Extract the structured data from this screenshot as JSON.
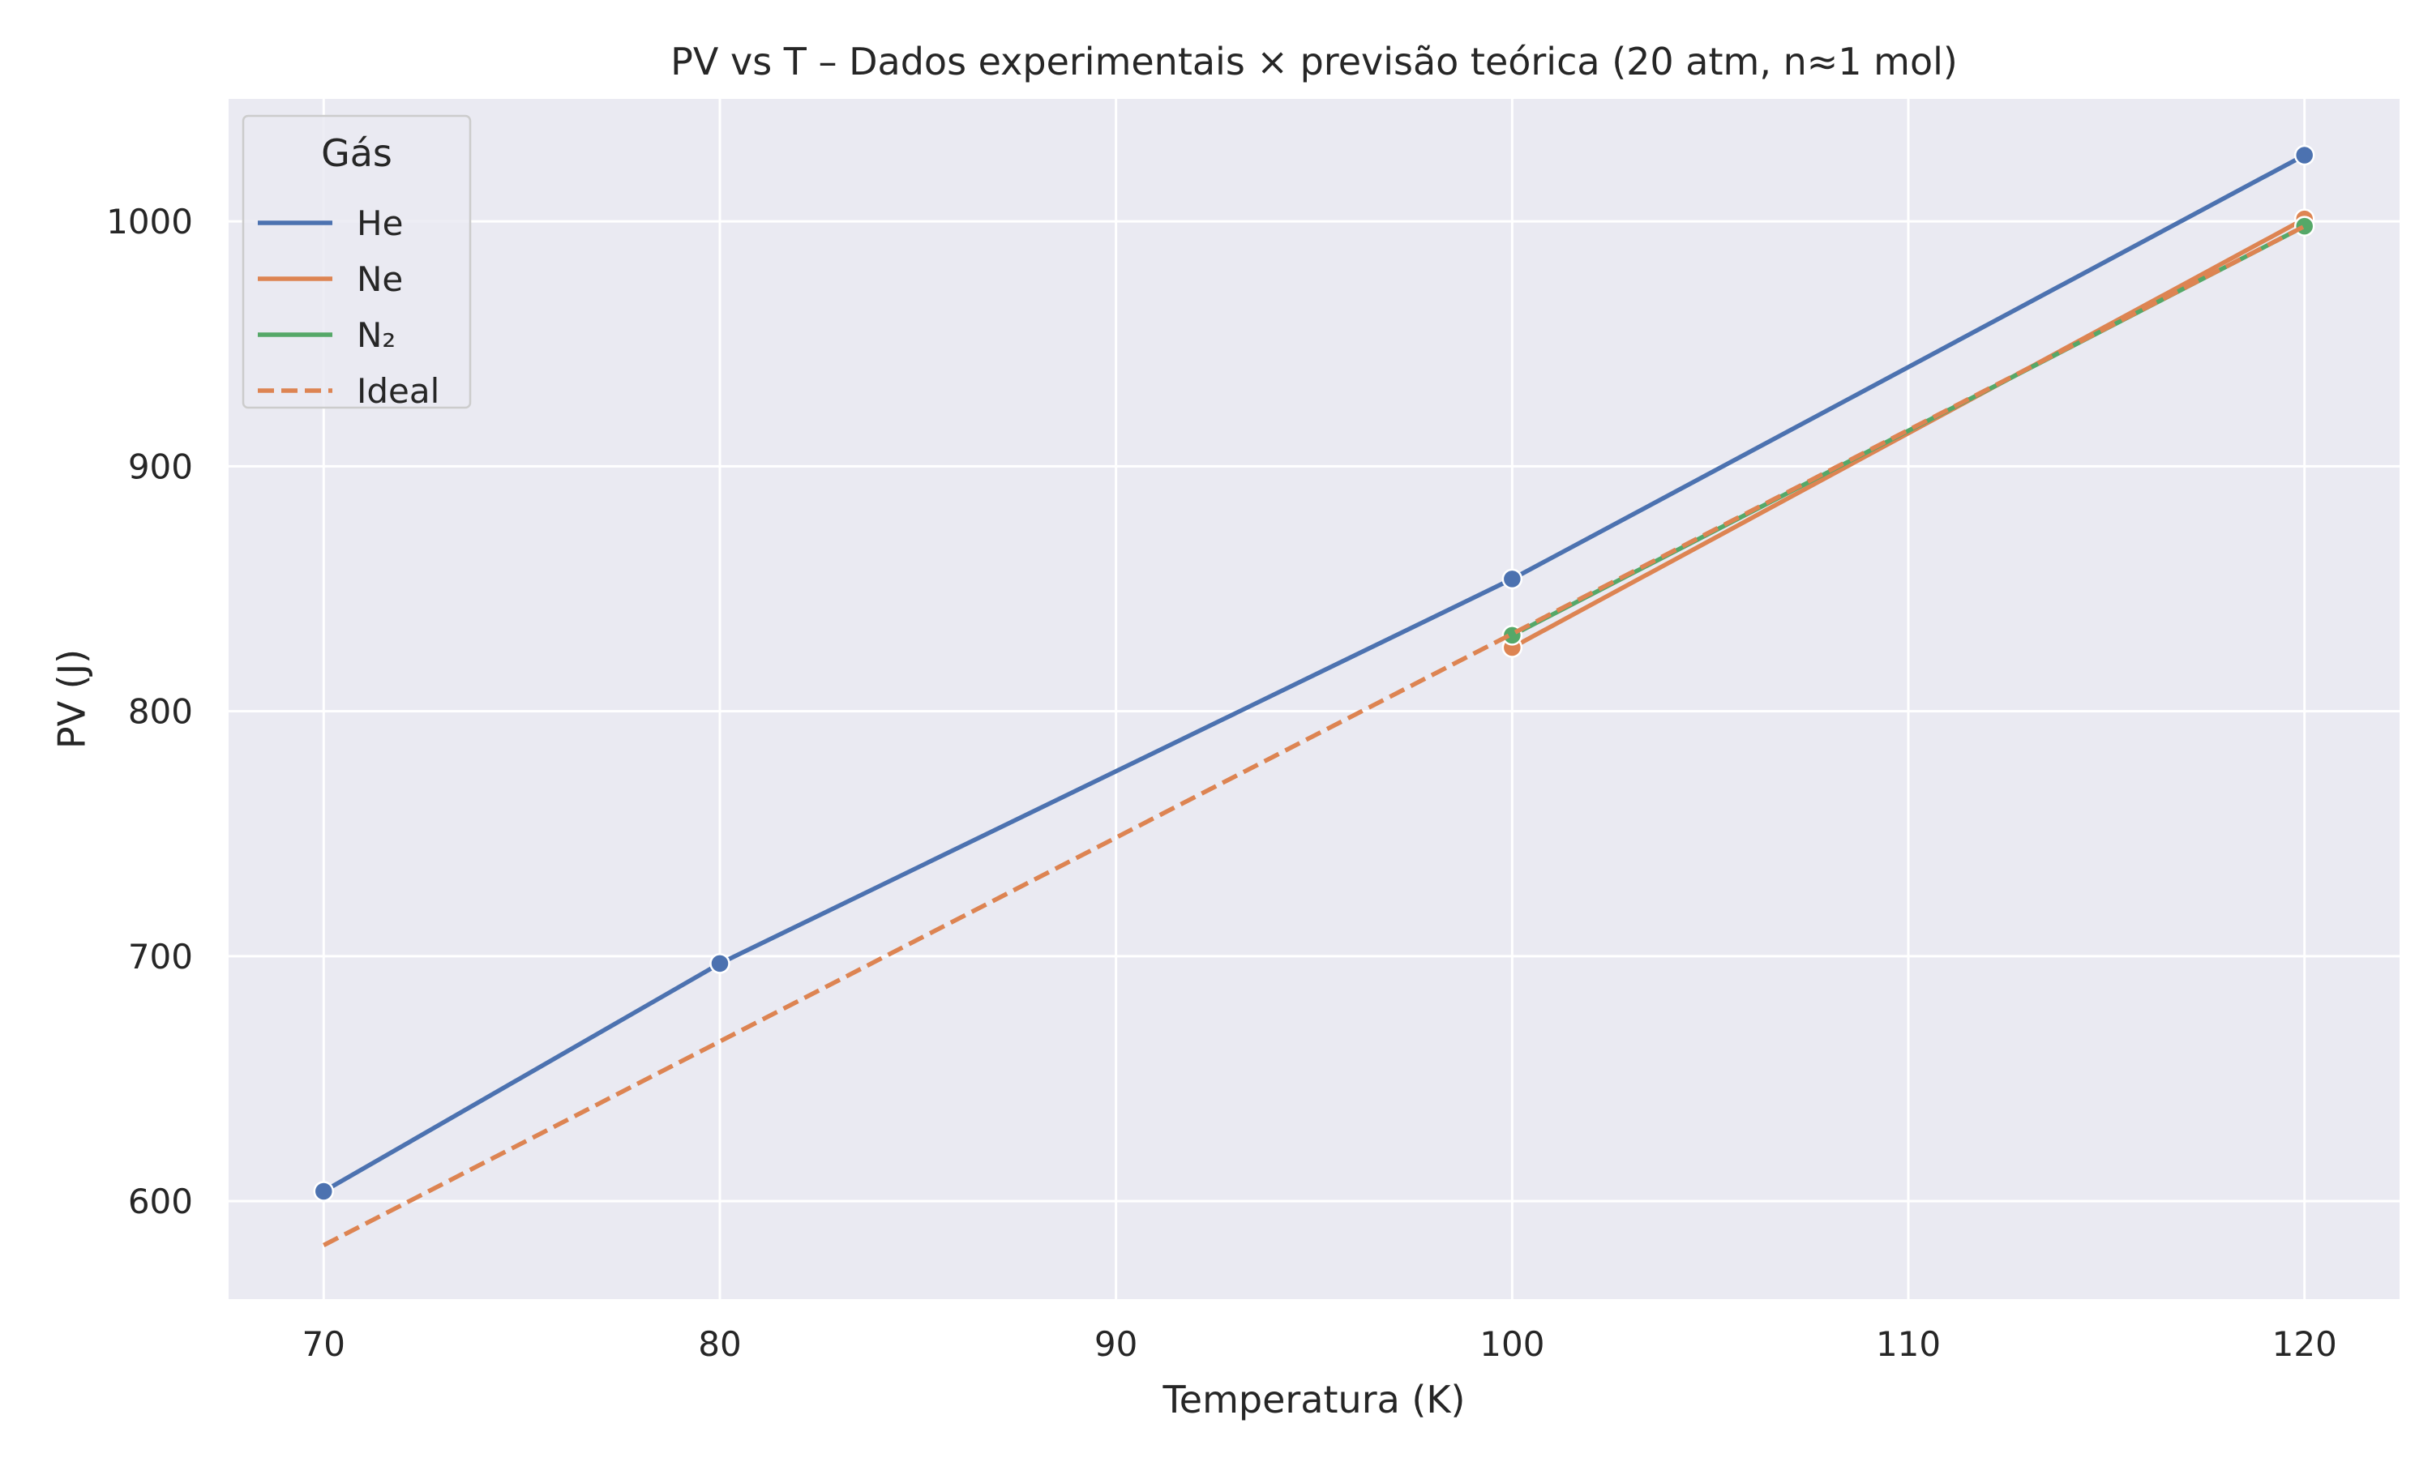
{
  "chart_data": {
    "type": "line",
    "title": "PV vs T – Dados experimentais × previsão teórica (20 atm, n≈1 mol)",
    "xlabel": "Temperatura (K)",
    "ylabel": "PV (J)",
    "xlim": [
      67.6,
      122.4
    ],
    "ylim": [
      560,
      1050
    ],
    "x_ticks": [
      70,
      80,
      90,
      100,
      110,
      120
    ],
    "y_ticks": [
      600,
      700,
      800,
      900,
      1000
    ],
    "grid": true,
    "legend": {
      "title": "Gás",
      "position": "top-left"
    },
    "series": [
      {
        "name": "He",
        "color": "#4c72b0",
        "style": "solid",
        "markers": true,
        "points": [
          [
            70,
            604
          ],
          [
            80,
            697
          ],
          [
            100,
            854
          ],
          [
            120,
            1027
          ]
        ]
      },
      {
        "name": "Ne",
        "color": "#dd8452",
        "style": "solid",
        "markers": true,
        "points": [
          [
            100,
            826
          ],
          [
            120,
            1001
          ]
        ]
      },
      {
        "name": "N₂",
        "color": "#55a868",
        "style": "solid",
        "markers": true,
        "points": [
          [
            100,
            831
          ],
          [
            120,
            998
          ]
        ]
      },
      {
        "name": "Ideal",
        "color": "#dd8452",
        "style": "dashed",
        "markers": false,
        "points": [
          [
            70,
            582
          ],
          [
            120,
            998
          ]
        ]
      }
    ]
  }
}
